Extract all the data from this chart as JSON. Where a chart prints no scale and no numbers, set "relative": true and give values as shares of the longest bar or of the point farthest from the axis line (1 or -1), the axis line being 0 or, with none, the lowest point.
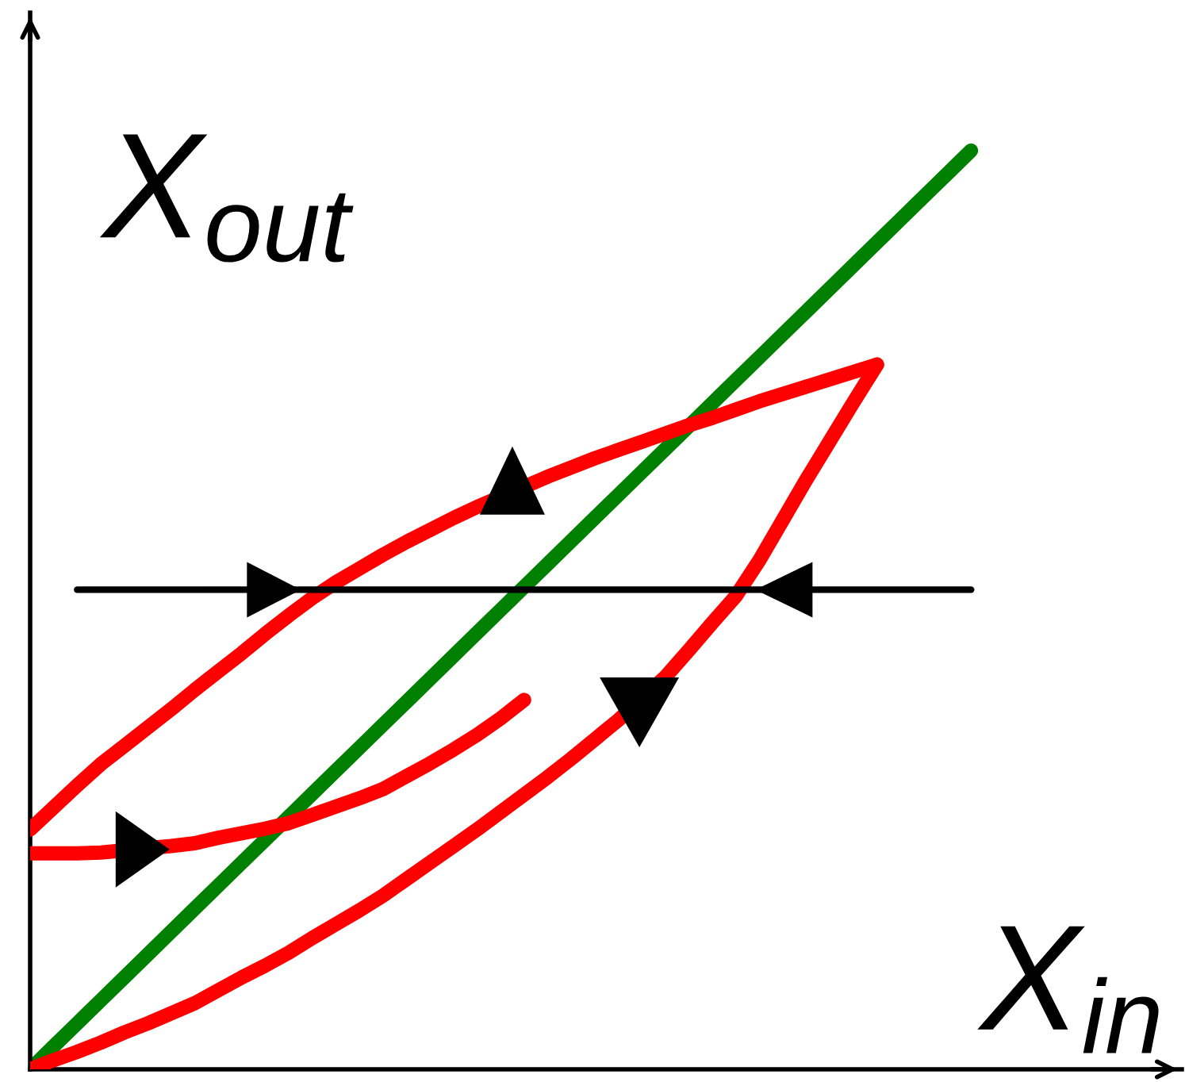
{
  "chart_data": {
    "type": "line",
    "relative": true,
    "xlabel": "X$_{in}$",
    "ylabel": "X$_{out}$",
    "marker": "none",
    "line_style": "solid",
    "categories": [
      null,
      null,
      null,
      null,
      null,
      null,
      null,
      null,
      null,
      null,
      null,
      null,
      null,
      null,
      null,
      null,
      null,
      null,
      null,
      null,
      null,
      null,
      null,
      null,
      null,
      null,
      null,
      null,
      null,
      null,
      null,
      null,
      null,
      null,
      null,
      null,
      null,
      null,
      null,
      null,
      null
    ],
    "series": [
      {
        "color": "#008000",
        "values": [
          0,
          0.025,
          0.05,
          0.075,
          0.1,
          0.125,
          0.15,
          0.175,
          0.2,
          0.225,
          0.25,
          0.275,
          0.3,
          0.325,
          0.35,
          0.375,
          0.4,
          0.425,
          0.45,
          0.475,
          0.5,
          0.525,
          0.55,
          0.575,
          0.6,
          0.625,
          0.65,
          0.675,
          0.7,
          0.725,
          0.75,
          0.775,
          0.8,
          0.825,
          0.85,
          0.875,
          0.9,
          0.925,
          0.95,
          0.975,
          1.0
        ]
      },
      {
        "color": "#ff0000",
        "values": [
          0.261,
          0.285,
          0.309,
          0.332,
          0.352,
          0.372,
          0.392,
          0.413,
          0.433,
          0.453,
          0.474,
          0.494,
          0.513,
          0.53,
          0.545,
          0.56,
          0.574,
          0.587,
          0.6,
          0.612,
          null,
          null,
          0.645,
          0.655,
          0.665,
          0.674,
          0.683,
          0.692,
          0.701,
          0.709,
          0.718,
          0.727,
          0.735,
          0.743,
          0.751,
          0.759,
          0.767,
          null,
          null,
          null,
          null
        ]
      },
      {
        "color": "#ff0000",
        "values": [
          0,
          0.01,
          0.019,
          0.029,
          0.04,
          0.05,
          0.061,
          0.072,
          0.086,
          0.1,
          0.113,
          0.127,
          0.143,
          0.158,
          0.173,
          0.189,
          0.207,
          0.225,
          0.243,
          0.261,
          0.28,
          0.299,
          0.318,
          0.338,
          0.359,
          0.38,
          null,
          0.427,
          0.456,
          0.486,
          0.515,
          0.554,
          0.598,
          0.642,
          0.684,
          0.726,
          0.767,
          null,
          null,
          null,
          null
        ]
      },
      {
        "color": "#ff0000",
        "values": [
          0.235,
          0.235,
          0.235,
          0.236,
          null,
          null,
          0.243,
          0.246,
          0.252,
          0.257,
          0.262,
          0.268,
          0.277,
          0.286,
          0.295,
          0.305,
          0.319,
          0.333,
          0.348,
          0.364,
          0.382,
          0.402,
          null,
          null,
          null,
          null,
          null,
          null,
          null,
          null,
          null,
          null,
          null,
          null,
          null,
          null,
          null,
          null,
          null,
          null,
          null
        ]
      },
      {
        "color": "#000000",
        "values": [
          null,
          null,
          0.522,
          0.522,
          0.522,
          0.522,
          0.522,
          0.522,
          0.522,
          0.522,
          0.522,
          0.522,
          0.522,
          0.522,
          0.522,
          0.522,
          0.522,
          0.522,
          0.522,
          0.522,
          0.522,
          0.522,
          0.522,
          0.522,
          0.522,
          0.522,
          0.522,
          0.522,
          0.522,
          0.522,
          0.522,
          0.522,
          0.522,
          0.522,
          0.522,
          0.522,
          0.522,
          0.522,
          0.522,
          0.522,
          0.522
        ]
      }
    ]
  }
}
